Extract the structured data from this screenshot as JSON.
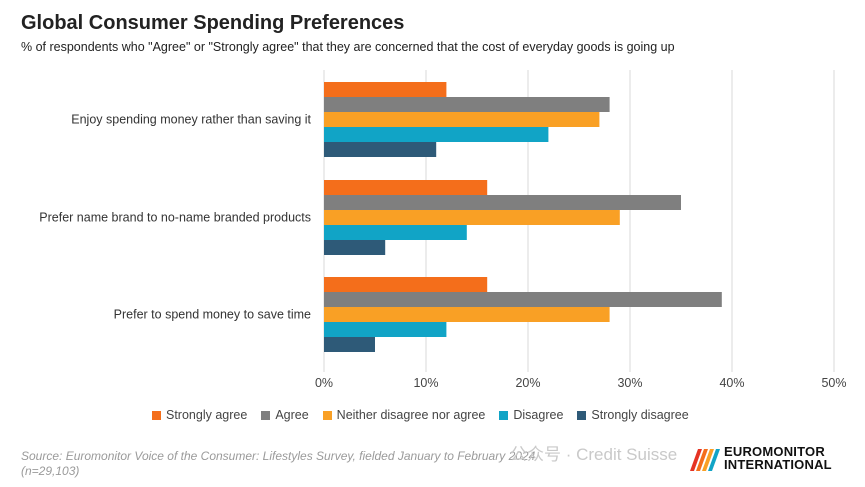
{
  "title": "Global Consumer Spending Preferences",
  "subtitle": "% of respondents who \"Agree\" or \"Strongly agree\" that they are concerned that the cost of everyday goods is going up",
  "source": "Source: Euromonitor Voice of the Consumer: Lifestyles Survey, fielded January to February 2024 (n=29,103)",
  "watermark": "公众号 · Credit Suisse",
  "logo": {
    "line1": "EUROMONITOR",
    "line2": "INTERNATIONAL"
  },
  "chart_data": {
    "type": "bar",
    "orientation": "horizontal",
    "categories": [
      "Enjoy spending money rather than saving it",
      "Prefer name brand to no-name branded products",
      "Prefer to spend money to save time"
    ],
    "series": [
      {
        "name": "Strongly agree",
        "color": "#F46E1B",
        "values": [
          12,
          16,
          16
        ]
      },
      {
        "name": "Agree",
        "color": "#7F7F7F",
        "values": [
          28,
          35,
          39
        ]
      },
      {
        "name": "Neither disagree nor agree",
        "color": "#F9A025",
        "values": [
          27,
          29,
          28
        ]
      },
      {
        "name": "Disagree",
        "color": "#11A4C6",
        "values": [
          22,
          14,
          12
        ]
      },
      {
        "name": "Strongly disagree",
        "color": "#2E5A78",
        "values": [
          11,
          6,
          5
        ]
      }
    ],
    "xlim": [
      0,
      50
    ],
    "xticks": [
      "0%",
      "10%",
      "20%",
      "30%",
      "40%",
      "50%"
    ],
    "grid": true,
    "legend_position": "bottom"
  }
}
